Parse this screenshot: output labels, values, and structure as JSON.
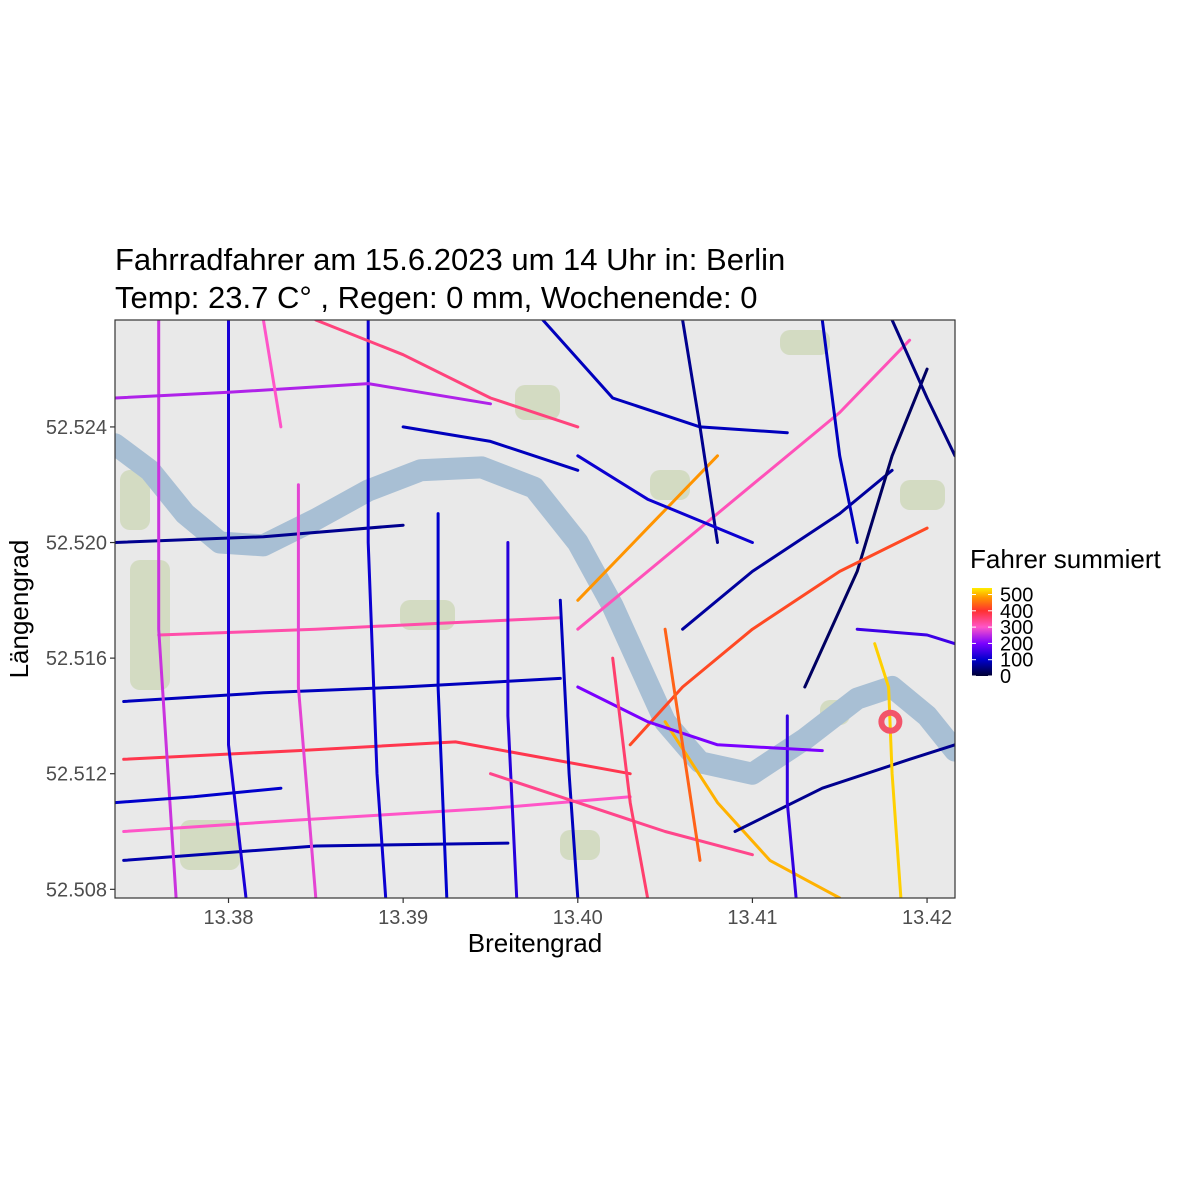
{
  "title_line1": "Fahrradfahrer am 15.6.2023 um 14 Uhr in: Berlin",
  "title_line2": "Temp: 23.7 C° , Regen: 0 mm, Wochenende: 0",
  "colors": {
    "background": "#ffffff",
    "map_base": "#e9e9e9",
    "water": "#a8bfd4",
    "park": "#c9d4b0",
    "marker": "#f2546a"
  },
  "chart_data": {
    "type": "map",
    "xlabel": "Breitengrad",
    "ylabel": "Längengrad",
    "x_ticks": [
      13.38,
      13.39,
      13.4,
      13.41,
      13.42
    ],
    "x_tick_labels": [
      "13.38",
      "13.39",
      "13.40",
      "13.41",
      "13.42"
    ],
    "y_ticks": [
      52.508,
      52.512,
      52.516,
      52.52,
      52.524
    ],
    "y_tick_labels": [
      "52.508",
      "52.512",
      "52.516",
      "52.520",
      "52.524"
    ],
    "xlim": [
      13.3735,
      13.4216
    ],
    "ylim": [
      52.5077,
      52.5277
    ],
    "legend": {
      "title": "Fahrer summiert",
      "placement": "right",
      "breaks": [
        0,
        100,
        200,
        300,
        400,
        500
      ],
      "break_labels": [
        "0",
        "100",
        "200",
        "300",
        "400",
        "500"
      ],
      "range": [
        0,
        540
      ],
      "gradient": [
        {
          "value": 0,
          "color": "#000033"
        },
        {
          "value": 100,
          "color": "#0000cc"
        },
        {
          "value": 200,
          "color": "#7a00ff"
        },
        {
          "value": 300,
          "color": "#ff55c8"
        },
        {
          "value": 400,
          "color": "#ff3030"
        },
        {
          "value": 480,
          "color": "#ff9400"
        },
        {
          "value": 540,
          "color": "#ffee00"
        }
      ]
    },
    "marker": {
      "lon": 13.4179,
      "lat": 52.5138
    },
    "river": [
      [
        13.3735,
        52.5234
      ],
      [
        13.3755,
        52.5225
      ],
      [
        13.3775,
        52.521
      ],
      [
        13.3795,
        52.52
      ],
      [
        13.382,
        52.5199
      ],
      [
        13.385,
        52.5208
      ],
      [
        13.388,
        52.5218
      ],
      [
        13.391,
        52.5225
      ],
      [
        13.3945,
        52.5226
      ],
      [
        13.3975,
        52.5219
      ],
      [
        13.4,
        52.52
      ],
      [
        13.402,
        52.5178
      ],
      [
        13.4035,
        52.5158
      ],
      [
        13.405,
        52.5138
      ],
      [
        13.407,
        52.5124
      ],
      [
        13.41,
        52.512
      ],
      [
        13.413,
        52.5132
      ],
      [
        13.416,
        52.5146
      ],
      [
        13.418,
        52.515
      ],
      [
        13.42,
        52.514
      ],
      [
        13.4216,
        52.5128
      ]
    ],
    "roads": [
      {
        "points": [
          [
            13.3735,
            52.52
          ],
          [
            13.382,
            52.5202
          ],
          [
            13.39,
            52.5206
          ]
        ],
        "riders": 60
      },
      {
        "points": [
          [
            13.376,
            52.5168
          ],
          [
            13.385,
            52.517
          ],
          [
            13.392,
            52.5172
          ],
          [
            13.399,
            52.5174
          ]
        ],
        "riders": 320
      },
      {
        "points": [
          [
            13.374,
            52.5145
          ],
          [
            13.382,
            52.5148
          ],
          [
            13.39,
            52.515
          ],
          [
            13.399,
            52.5153
          ]
        ],
        "riders": 90
      },
      {
        "points": [
          [
            13.374,
            52.5125
          ],
          [
            13.384,
            52.5128
          ],
          [
            13.393,
            52.5131
          ],
          [
            13.403,
            52.512
          ]
        ],
        "riders": 380
      },
      {
        "points": [
          [
            13.374,
            52.51
          ],
          [
            13.384,
            52.5104
          ],
          [
            13.395,
            52.5108
          ],
          [
            13.403,
            52.5112
          ]
        ],
        "riders": 300
      },
      {
        "points": [
          [
            13.374,
            52.509
          ],
          [
            13.385,
            52.5095
          ],
          [
            13.396,
            52.5096
          ]
        ],
        "riders": 80
      },
      {
        "points": [
          [
            13.38,
            52.5277
          ],
          [
            13.38,
            52.52
          ],
          [
            13.38,
            52.513
          ],
          [
            13.381,
            52.5077
          ]
        ],
        "riders": 120
      },
      {
        "points": [
          [
            13.384,
            52.522
          ],
          [
            13.384,
            52.515
          ],
          [
            13.385,
            52.5077
          ]
        ],
        "riders": 280
      },
      {
        "points": [
          [
            13.388,
            52.5277
          ],
          [
            13.388,
            52.52
          ],
          [
            13.3885,
            52.512
          ],
          [
            13.389,
            52.5077
          ]
        ],
        "riders": 110
      },
      {
        "points": [
          [
            13.392,
            52.521
          ],
          [
            13.392,
            52.515
          ],
          [
            13.3925,
            52.5077
          ]
        ],
        "riders": 100
      },
      {
        "points": [
          [
            13.396,
            52.52
          ],
          [
            13.396,
            52.514
          ],
          [
            13.3965,
            52.5077
          ]
        ],
        "riders": 130
      },
      {
        "points": [
          [
            13.399,
            52.518
          ],
          [
            13.3995,
            52.512
          ],
          [
            13.4,
            52.5077
          ]
        ],
        "riders": 90
      },
      {
        "points": [
          [
            13.376,
            52.5277
          ],
          [
            13.376,
            52.517
          ],
          [
            13.377,
            52.5077
          ]
        ],
        "riders": 260
      },
      {
        "points": [
          [
            13.3735,
            52.525
          ],
          [
            13.38,
            52.5252
          ],
          [
            13.388,
            52.5255
          ],
          [
            13.395,
            52.5248
          ]
        ],
        "riders": 240
      },
      {
        "points": [
          [
            13.385,
            52.5277
          ],
          [
            13.39,
            52.5265
          ],
          [
            13.395,
            52.525
          ],
          [
            13.4,
            52.524
          ]
        ],
        "riders": 350
      },
      {
        "points": [
          [
            13.398,
            52.5277
          ],
          [
            13.402,
            52.525
          ],
          [
            13.407,
            52.524
          ],
          [
            13.412,
            52.5238
          ]
        ],
        "riders": 90
      },
      {
        "points": [
          [
            13.4,
            52.517
          ],
          [
            13.405,
            52.5195
          ],
          [
            13.41,
            52.522
          ],
          [
            13.415,
            52.5245
          ],
          [
            13.419,
            52.527
          ]
        ],
        "riders": 310
      },
      {
        "points": [
          [
            13.4,
            52.518
          ],
          [
            13.404,
            52.5205
          ],
          [
            13.408,
            52.523
          ]
        ],
        "riders": 480
      },
      {
        "points": [
          [
            13.406,
            52.517
          ],
          [
            13.41,
            52.519
          ],
          [
            13.415,
            52.521
          ],
          [
            13.418,
            52.5225
          ]
        ],
        "riders": 70
      },
      {
        "points": [
          [
            13.413,
            52.515
          ],
          [
            13.416,
            52.519
          ],
          [
            13.418,
            52.523
          ],
          [
            13.42,
            52.526
          ]
        ],
        "riders": 30
      },
      {
        "points": [
          [
            13.403,
            52.513
          ],
          [
            13.406,
            52.515
          ],
          [
            13.41,
            52.517
          ],
          [
            13.415,
            52.519
          ],
          [
            13.42,
            52.5205
          ]
        ],
        "riders": 420
      },
      {
        "points": [
          [
            13.405,
            52.5138
          ],
          [
            13.408,
            52.511
          ],
          [
            13.411,
            52.509
          ],
          [
            13.415,
            52.5077
          ]
        ],
        "riders": 500
      },
      {
        "points": [
          [
            13.409,
            52.51
          ],
          [
            13.414,
            52.5115
          ],
          [
            13.419,
            52.5125
          ],
          [
            13.4216,
            52.513
          ]
        ],
        "riders": 60
      },
      {
        "points": [
          [
            13.412,
            52.514
          ],
          [
            13.412,
            52.511
          ],
          [
            13.4125,
            52.5077
          ]
        ],
        "riders": 140
      },
      {
        "points": [
          [
            13.417,
            52.5165
          ],
          [
            13.4178,
            52.515
          ],
          [
            13.418,
            52.512
          ],
          [
            13.4185,
            52.5077
          ]
        ],
        "riders": 520
      },
      {
        "points": [
          [
            13.418,
            52.5277
          ],
          [
            13.42,
            52.525
          ],
          [
            13.4216,
            52.523
          ]
        ],
        "riders": 50
      },
      {
        "points": [
          [
            13.414,
            52.5277
          ],
          [
            13.415,
            52.523
          ],
          [
            13.416,
            52.52
          ]
        ],
        "riders": 90
      },
      {
        "points": [
          [
            13.406,
            52.5277
          ],
          [
            13.407,
            52.524
          ],
          [
            13.408,
            52.52
          ]
        ],
        "riders": 60
      },
      {
        "points": [
          [
            13.4,
            52.515
          ],
          [
            13.404,
            52.5138
          ],
          [
            13.408,
            52.513
          ],
          [
            13.414,
            52.5128
          ]
        ],
        "riders": 200
      },
      {
        "points": [
          [
            13.395,
            52.512
          ],
          [
            13.4,
            52.511
          ],
          [
            13.405,
            52.51
          ],
          [
            13.41,
            52.5092
          ]
        ],
        "riders": 340
      },
      {
        "points": [
          [
            13.405,
            52.517
          ],
          [
            13.406,
            52.513
          ],
          [
            13.407,
            52.509
          ]
        ],
        "riders": 440
      },
      {
        "points": [
          [
            13.4,
            52.523
          ],
          [
            13.404,
            52.5215
          ],
          [
            13.41,
            52.52
          ]
        ],
        "riders": 110
      },
      {
        "points": [
          [
            13.39,
            52.524
          ],
          [
            13.395,
            52.5235
          ],
          [
            13.4,
            52.5225
          ]
        ],
        "riders": 90
      },
      {
        "points": [
          [
            13.402,
            52.516
          ],
          [
            13.403,
            52.511
          ],
          [
            13.404,
            52.5077
          ]
        ],
        "riders": 360
      },
      {
        "points": [
          [
            13.3735,
            52.511
          ],
          [
            13.378,
            52.5112
          ],
          [
            13.383,
            52.5115
          ]
        ],
        "riders": 100
      },
      {
        "points": [
          [
            13.382,
            52.5277
          ],
          [
            13.383,
            52.524
          ]
        ],
        "riders": 300
      },
      {
        "points": [
          [
            13.416,
            52.517
          ],
          [
            13.42,
            52.5168
          ],
          [
            13.4216,
            52.5165
          ]
        ],
        "riders": 150
      }
    ]
  }
}
